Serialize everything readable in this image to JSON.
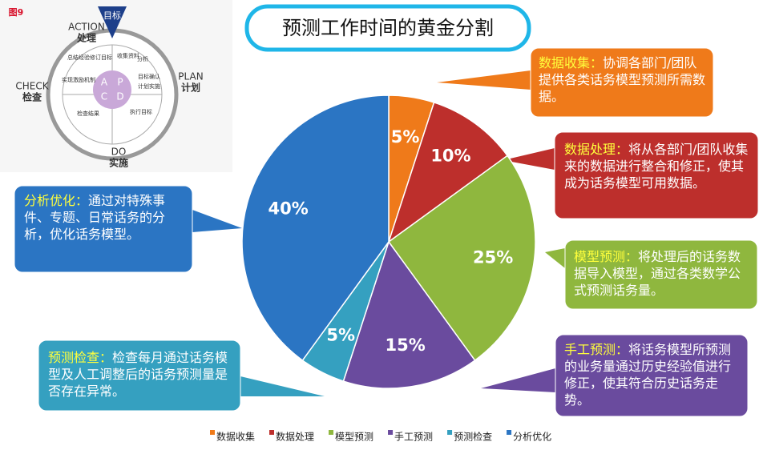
{
  "chart_data": {
    "type": "pie",
    "title": "预测工作时间的黄金分割",
    "categories": [
      "数据收集",
      "数据处理",
      "模型预测",
      "手工预测",
      "预测检查",
      "分析优化"
    ],
    "values": [
      5,
      10,
      25,
      15,
      5,
      40
    ],
    "value_labels": [
      "5%",
      "10%",
      "25%",
      "15%",
      "5%",
      "40%"
    ],
    "colors": [
      "#ef7a1a",
      "#bd2f2c",
      "#8fb73e",
      "#6a4b9e",
      "#35a0c0",
      "#2b75c3"
    ],
    "legend": "bottom",
    "annotations": [
      {
        "heading": "数据收集：",
        "text": "协调各部门/团队提供各类话务模型预测所需数据。"
      },
      {
        "heading": "数据处理：",
        "text": "将从各部门/团队收集来的数据进行整合和修正，使其成为话务模型可用数据。"
      },
      {
        "heading": "模型预测：",
        "text": "将处理后的话务数据导入模型，通过各类数学公式预测话务量。"
      },
      {
        "heading": "手工预测：",
        "text": "将话务模型所预测的业务量通过历史经验值进行修正，使其符合历史话务走势。"
      },
      {
        "heading": "预测检查：",
        "text": "检查每月通过话务模型及人工调整后的话务预测量是否存在异常。"
      },
      {
        "heading": "分析优化：",
        "text": "通过对特殊事件、专题、日常话务的分析，优化话务模型。"
      }
    ]
  },
  "pdca_diagram": {
    "figure_label": "图9",
    "goal": "目标",
    "action": "ACTION",
    "action_cn": "处理",
    "plan": "PLAN",
    "plan_cn": "计划",
    "check": "CHECK",
    "check_cn": "检查",
    "do": "DO",
    "do_cn": "实施",
    "letters": [
      "A",
      "P",
      "C",
      "D"
    ],
    "steps": [
      "总结经验修订目标",
      "收集资料",
      "分析",
      "目标确认",
      "计划实施",
      "执行目标",
      "检查结果",
      "实现激励机制"
    ]
  }
}
